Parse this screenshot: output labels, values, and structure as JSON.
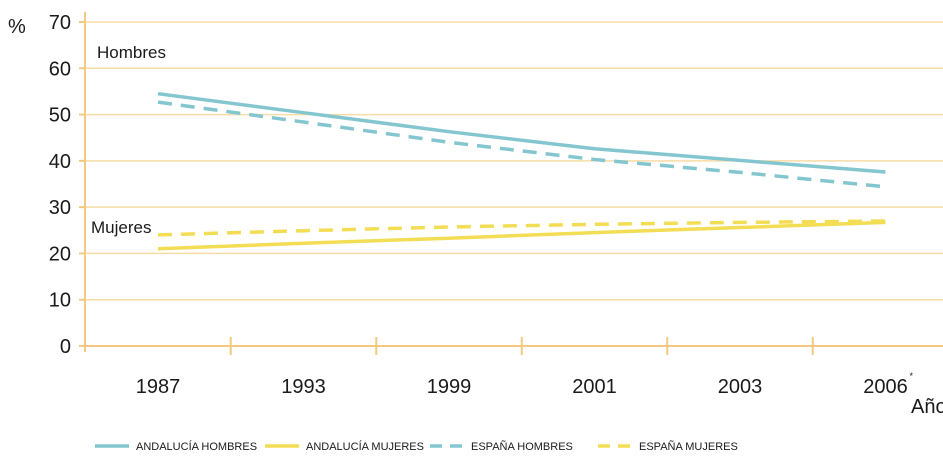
{
  "chart_data": {
    "type": "line",
    "categories": [
      "1987",
      "1993",
      "1999",
      "2001",
      "2003",
      "2006"
    ],
    "category_note": "*",
    "ylabel": "%",
    "xlabel": "Años",
    "ylim": [
      0,
      70
    ],
    "yticks": [
      0,
      10,
      20,
      30,
      40,
      50,
      60,
      70
    ],
    "grid": true,
    "annotations": {
      "men": "Hombres",
      "women": "Mujeres"
    },
    "legend_position": "bottom",
    "series": [
      {
        "name": "ANDALUCÍA HOMBRES",
        "values": [
          54.5,
          50.4,
          46.3,
          42.6,
          40.1,
          37.6
        ],
        "color": "#84c6cf",
        "style": "solid"
      },
      {
        "name": "ANDALUCÍA MUJERES",
        "values": [
          21.0,
          22.2,
          23.3,
          24.5,
          25.6,
          26.7
        ],
        "color": "#f2dd55",
        "style": "solid"
      },
      {
        "name": "ESPAÑA HOMBRES",
        "values": [
          52.7,
          48.4,
          44.0,
          40.3,
          37.5,
          34.4
        ],
        "color": "#84c6cf",
        "style": "dashed"
      },
      {
        "name": "ESPAÑA MUJERES",
        "values": [
          24.0,
          24.9,
          25.7,
          26.3,
          26.7,
          27.0
        ],
        "color": "#f2dd55",
        "style": "dashed"
      }
    ],
    "colors": {
      "grid": "#f7dca6",
      "axis": "#f5c880"
    }
  }
}
